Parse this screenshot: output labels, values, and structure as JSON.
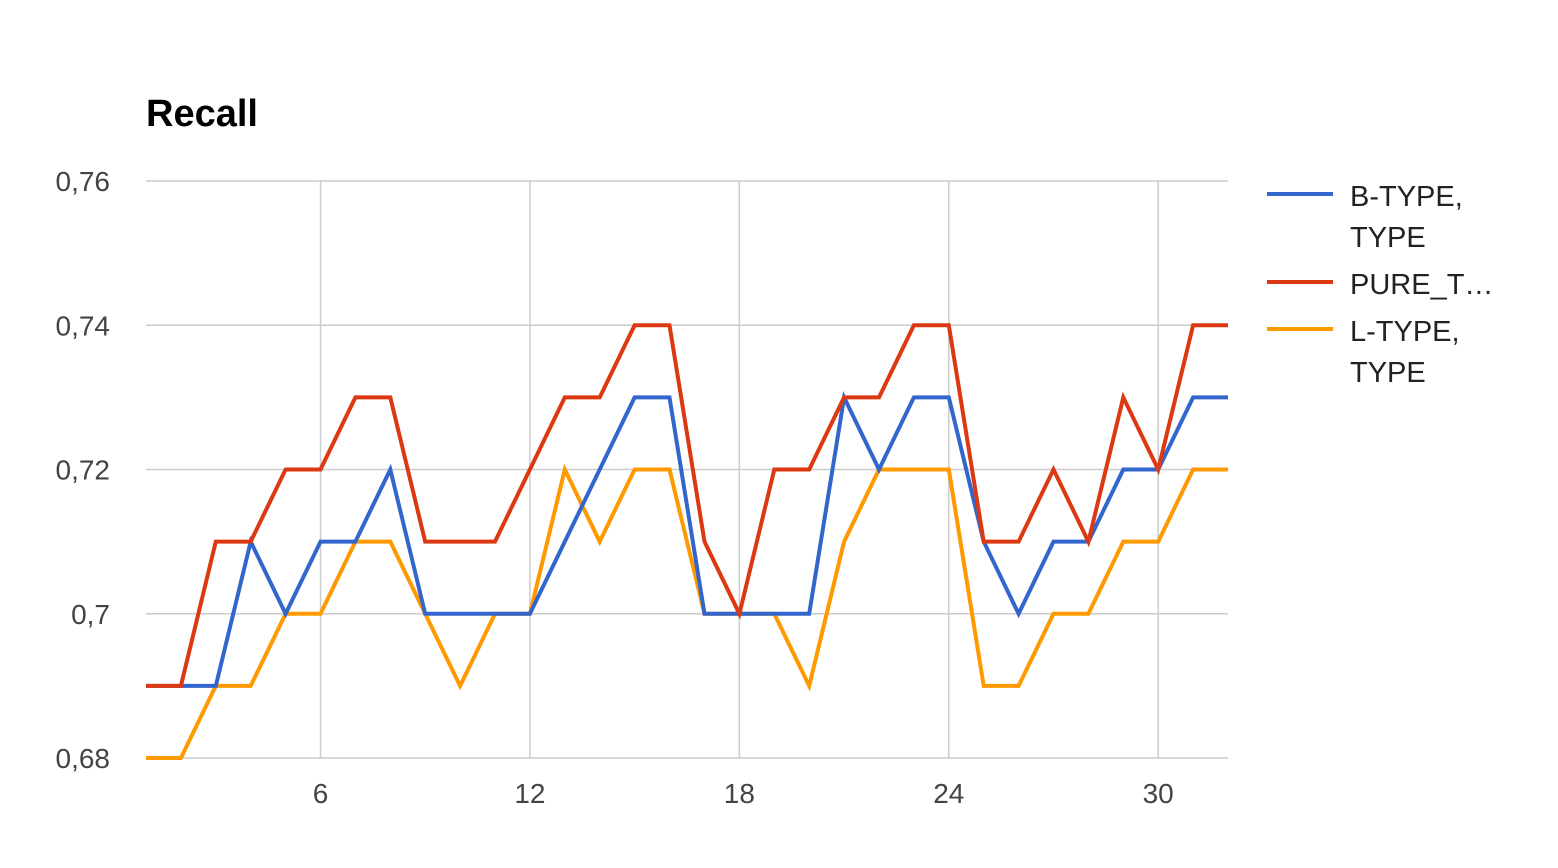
{
  "chart_data": {
    "type": "line",
    "title": "Recall",
    "xlabel": "",
    "ylabel": "",
    "x": [
      1,
      2,
      3,
      4,
      5,
      6,
      7,
      8,
      9,
      10,
      11,
      12,
      13,
      14,
      15,
      16,
      17,
      18,
      19,
      20,
      21,
      22,
      23,
      24,
      25,
      26,
      27,
      28,
      29,
      30,
      31,
      32
    ],
    "xlim": [
      1,
      32
    ],
    "ylim": [
      0.68,
      0.76
    ],
    "x_ticks": [
      6,
      12,
      18,
      24,
      30
    ],
    "x_tick_labels": [
      "6",
      "12",
      "18",
      "24",
      "30"
    ],
    "y_ticks": [
      0.68,
      0.7,
      0.72,
      0.74,
      0.76
    ],
    "y_tick_labels": [
      "0,68",
      "0,7",
      "0,72",
      "0,74",
      "0,76"
    ],
    "grid": true,
    "legend_position": "right",
    "series": [
      {
        "name": "B-TYPE, TYPE",
        "legend_lines": [
          "B-TYPE,",
          "TYPE"
        ],
        "color": "#3366cc",
        "values": [
          0.69,
          0.69,
          0.69,
          0.71,
          0.7,
          0.71,
          0.71,
          0.72,
          0.7,
          0.7,
          0.7,
          0.7,
          0.71,
          0.72,
          0.73,
          0.73,
          0.7,
          0.7,
          0.7,
          0.7,
          0.73,
          0.72,
          0.73,
          0.73,
          0.71,
          0.7,
          0.71,
          0.71,
          0.72,
          0.72,
          0.73,
          0.73
        ]
      },
      {
        "name": "PURE_T…",
        "legend_lines": [
          "PURE_T…"
        ],
        "color": "#dc3912",
        "values": [
          0.69,
          0.69,
          0.71,
          0.71,
          0.72,
          0.72,
          0.73,
          0.73,
          0.71,
          0.71,
          0.71,
          0.72,
          0.73,
          0.73,
          0.74,
          0.74,
          0.71,
          0.7,
          0.72,
          0.72,
          0.73,
          0.73,
          0.74,
          0.74,
          0.71,
          0.71,
          0.72,
          0.71,
          0.73,
          0.72,
          0.74,
          0.74
        ]
      },
      {
        "name": "L-TYPE, TYPE",
        "legend_lines": [
          "L-TYPE,",
          "TYPE"
        ],
        "color": "#ff9900",
        "values": [
          0.68,
          0.68,
          0.69,
          0.69,
          0.7,
          0.7,
          0.71,
          0.71,
          0.7,
          0.69,
          0.7,
          0.7,
          0.72,
          0.71,
          0.72,
          0.72,
          0.7,
          0.7,
          0.7,
          0.69,
          0.71,
          0.72,
          0.72,
          0.72,
          0.69,
          0.69,
          0.7,
          0.7,
          0.71,
          0.71,
          0.72,
          0.72
        ]
      }
    ]
  }
}
